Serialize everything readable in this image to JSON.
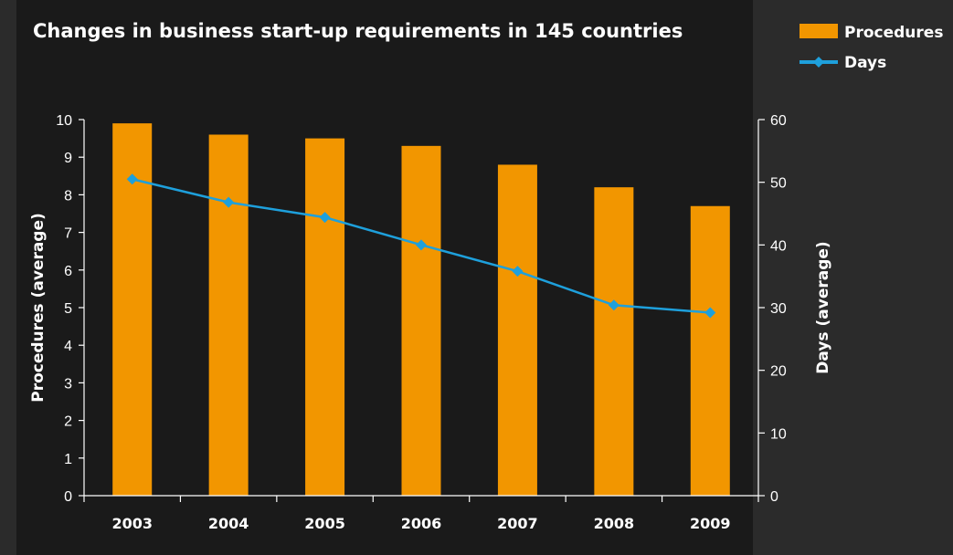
{
  "chart_data": {
    "type": "bar",
    "title": "Changes in business start-up requirements in 145 countries",
    "categories": [
      "2003",
      "2004",
      "2005",
      "2006",
      "2007",
      "2008",
      "2009"
    ],
    "series": [
      {
        "name": "Procedures",
        "type": "bar",
        "axis": "left",
        "color": "#f29600",
        "values": [
          9.9,
          9.6,
          9.5,
          9.3,
          8.8,
          8.2,
          7.7
        ]
      },
      {
        "name": "Days",
        "type": "line",
        "axis": "right",
        "color": "#1ea0dc",
        "values": [
          50.5,
          46.8,
          44.4,
          40.0,
          35.8,
          30.4,
          29.2
        ]
      }
    ],
    "ylabel_left": "Procedures (average)",
    "ylabel_right": "Days (average)",
    "ylim_left": [
      0,
      10
    ],
    "ylim_right": [
      0,
      60
    ],
    "yticks_left": [
      "0",
      "1",
      "2",
      "3",
      "4",
      "5",
      "6",
      "7",
      "8",
      "9",
      "10"
    ],
    "yticks_right": [
      "0",
      "10",
      "20",
      "30",
      "40",
      "50",
      "60"
    ],
    "grid": false,
    "legend_position": "top-right",
    "colors": {
      "background": "#1a1a1a",
      "page": "#2a2a2a",
      "axis": "#ffffff",
      "text": "#ffffff"
    }
  }
}
